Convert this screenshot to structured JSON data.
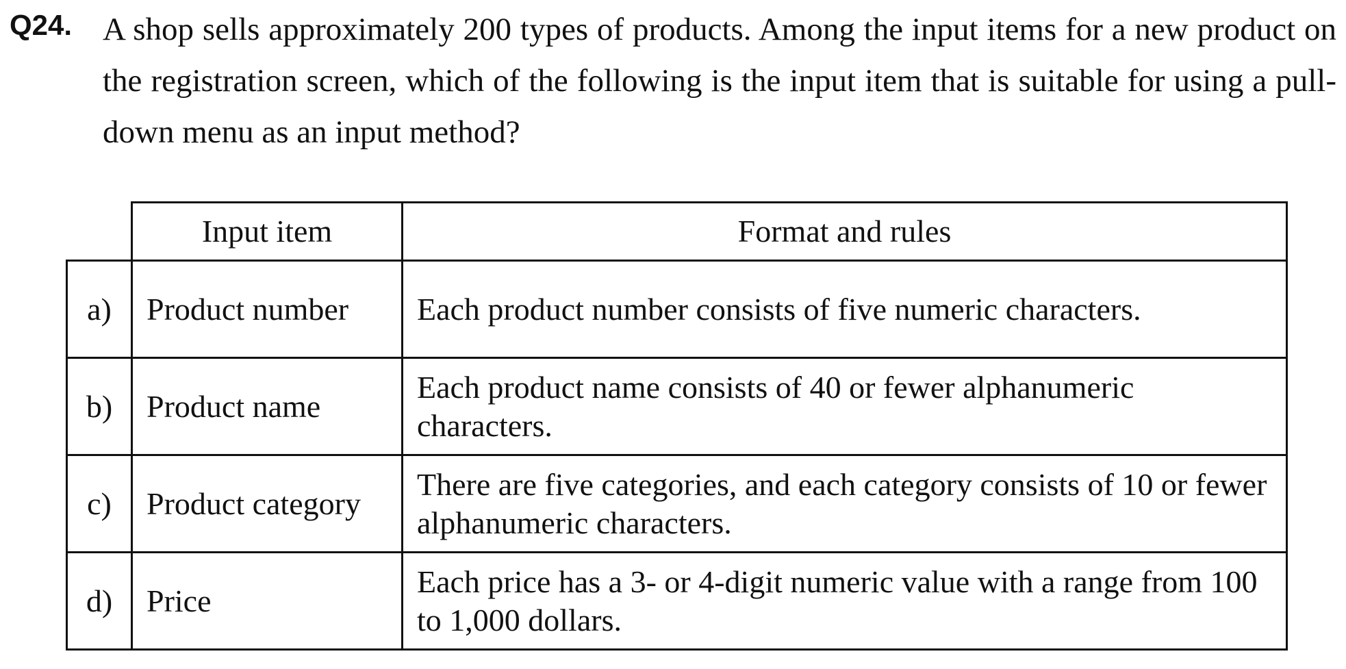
{
  "question": {
    "number": "Q24.",
    "text": "A shop sells approximately 200 types of products.  Among the input items for a new product on the registration screen, which of the following is the input item that is suitable for using a pull-down menu as an input method?"
  },
  "table": {
    "headers": {
      "item": "Input item",
      "format": "Format and rules"
    },
    "rows": [
      {
        "letter": "a)",
        "item": "Product number",
        "format": "Each product number consists of five numeric characters."
      },
      {
        "letter": "b)",
        "item": "Product name",
        "format": "Each product name consists of 40 or fewer alphanumeric characters."
      },
      {
        "letter": "c)",
        "item": "Product category",
        "format": "There are five categories, and each category consists of 10 or fewer alphanumeric characters."
      },
      {
        "letter": "d)",
        "item": "Price",
        "format": "Each price has a 3- or 4-digit numeric value with a range from 100 to 1,000 dollars."
      }
    ]
  }
}
